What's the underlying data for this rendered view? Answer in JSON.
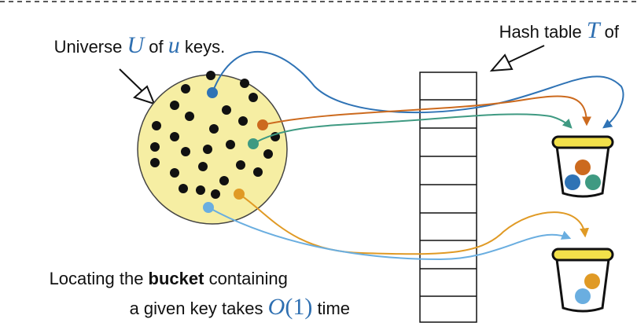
{
  "universe_label": {
    "prefix": "Universe ",
    "set_symbol": "U",
    "middle": " of ",
    "var_symbol": "u",
    "suffix": " keys."
  },
  "hash_table_label": {
    "prefix": "Hash table ",
    "symbol": "T",
    "suffix": " of"
  },
  "caption": {
    "line1_prefix": "Locating the ",
    "line1_bold": "bucket",
    "line1_suffix": " containing",
    "line2_prefix": "a given key takes ",
    "big_o": "O",
    "big_o_arg": "(1)",
    "line2_suffix": " time"
  },
  "colors": {
    "universe_fill": "#f6eea3",
    "blue": "#2f73b5",
    "orange": "#cc6a1e",
    "teal": "#3f9a82",
    "gold": "#e09a25",
    "light_blue": "#6aaee0",
    "math": "#2e6fb1",
    "bucket_rim": "#f2e04a"
  },
  "table_slots": 9,
  "black_key_count": 26
}
